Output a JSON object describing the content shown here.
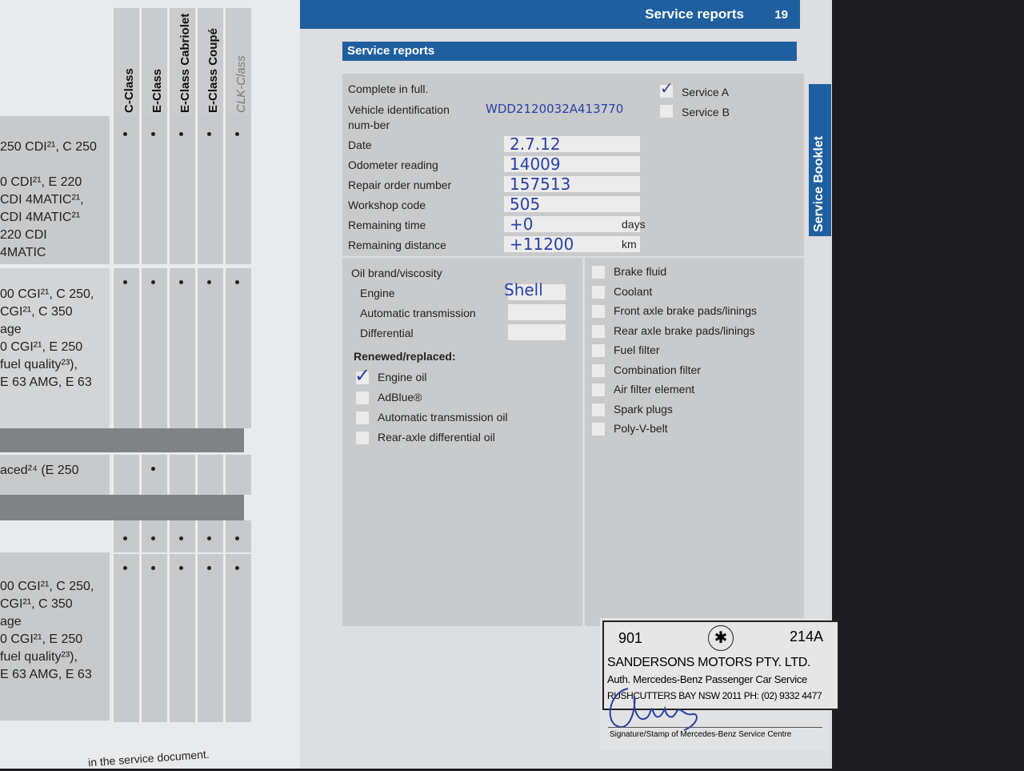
{
  "left_page": {
    "columns": [
      "C-Class",
      "E-Class",
      "E-Class Cabriolet",
      "E-Class Coupé",
      "CLK-Class"
    ],
    "rows": [
      {
        "lines": [
          "250 CDI²¹, C 250",
          "",
          "0 CDI²¹, E 220",
          "CDI 4MATIC²¹,",
          "CDI 4MATIC²¹",
          "220 CDI",
          "4MATIC"
        ]
      },
      {
        "lines": [
          "",
          "00 CGI²¹, C 250,",
          "CGI²¹, C 350",
          "age",
          "0 CGI²¹, E 250",
          "fuel quality²³),",
          "E 63 AMG, E 63"
        ]
      },
      {
        "lines": [
          "aced²⁴ (E 250"
        ]
      },
      {
        "lines": [
          "",
          "00 CGI²¹, C 250,",
          "CGI²¹, C 350",
          "age",
          "0 CGI²¹, E 250",
          "fuel quality²³),",
          "E 63 AMG, E 63"
        ]
      }
    ],
    "footer": "in the service document."
  },
  "header": {
    "section": "Service reports",
    "page": "19",
    "side_tab": "Service Booklet"
  },
  "form": {
    "title": "Service reports",
    "fields": [
      {
        "label": "Complete in full.",
        "value": ""
      },
      {
        "label": "Vehicle identification num-ber",
        "value": "WDD2120032A413770"
      },
      {
        "label": "Date",
        "value": "2.7.12"
      },
      {
        "label": "Odometer reading",
        "value": "14009"
      },
      {
        "label": "Repair order number",
        "value": "157513"
      },
      {
        "label": "Workshop code",
        "value": "505"
      },
      {
        "label": "Remaining time",
        "value": "+0",
        "unit": "days"
      },
      {
        "label": "Remaining distance",
        "value": "+11200",
        "unit": "km"
      }
    ],
    "service_types": [
      {
        "label": "Service A",
        "checked": true
      },
      {
        "label": "Service B",
        "checked": false
      }
    ],
    "oil": {
      "heading": "Oil brand/viscosity",
      "items": [
        {
          "label": "Engine",
          "value": "Shell"
        },
        {
          "label": "Automatic transmission",
          "value": ""
        },
        {
          "label": "Differential",
          "value": ""
        }
      ]
    },
    "renewed": {
      "heading": "Renewed/replaced:",
      "items": [
        {
          "label": "Engine oil",
          "checked": true
        },
        {
          "label": "AdBlue®",
          "checked": false
        },
        {
          "label": "Automatic transmission oil",
          "checked": false
        },
        {
          "label": "Rear-axle differential oil",
          "checked": false
        }
      ]
    },
    "checks": [
      {
        "label": "Brake fluid"
      },
      {
        "label": "Coolant"
      },
      {
        "label": "Front axle brake pads/linings"
      },
      {
        "label": "Rear axle brake pads/linings"
      },
      {
        "label": "Fuel filter"
      },
      {
        "label": "Combination filter"
      },
      {
        "label": "Air filter element"
      },
      {
        "label": "Spark plugs"
      },
      {
        "label": "Poly-V-belt"
      }
    ],
    "stamp": {
      "code_left": "901",
      "code_right": "214A",
      "name": "SANDERSONS MOTORS PTY. LTD.",
      "line2": "Auth. Mercedes-Benz Passenger Car Service",
      "line3": "RUSHCUTTERS BAY NSW 2011 PH: (02) 9332 4477"
    },
    "signature_label": "Signature/Stamp of Mercedes-Benz Service Centre"
  },
  "colors": {
    "brand_blue": "#1f5fa0",
    "ink": "#2a3fa6"
  }
}
